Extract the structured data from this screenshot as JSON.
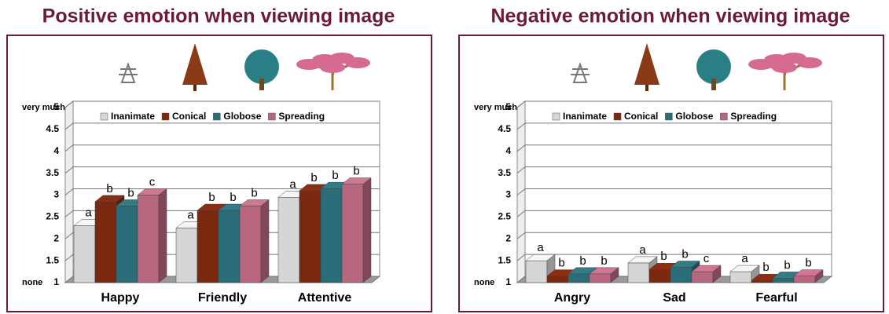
{
  "chart_data": [
    {
      "type": "bar3d",
      "title": "Positive emotion when viewing image",
      "categories": [
        "Happy",
        "Friendly",
        "Attentive"
      ],
      "series": [
        {
          "name": "Inanimate",
          "color": "#d6d6d6",
          "values": [
            2.3,
            2.25,
            2.95
          ],
          "significance_labels": [
            "a",
            "a",
            "a"
          ]
        },
        {
          "name": "Conical",
          "color": "#7a2810",
          "values": [
            2.85,
            2.65,
            3.1
          ],
          "significance_labels": [
            "b",
            "b",
            "b"
          ]
        },
        {
          "name": "Globose",
          "color": "#2a6d78",
          "values": [
            2.75,
            2.65,
            3.15
          ],
          "significance_labels": [
            "b",
            "b",
            "b"
          ]
        },
        {
          "name": "Spreading",
          "color": "#b8677f",
          "values": [
            3.0,
            2.75,
            3.25
          ],
          "significance_labels": [
            "c",
            "b",
            "b"
          ]
        }
      ],
      "ylim": [
        1,
        5
      ],
      "yticks": [
        1,
        1.5,
        2,
        2.5,
        3,
        3.5,
        4,
        4.5,
        5
      ],
      "ylabel_top": "very much",
      "ylabel_bottom": "none",
      "grid": true
    },
    {
      "type": "bar3d",
      "title": "Negative emotion when viewing image",
      "categories": [
        "Angry",
        "Sad",
        "Fearful"
      ],
      "series": [
        {
          "name": "Inanimate",
          "color": "#d6d6d6",
          "values": [
            1.5,
            1.45,
            1.25
          ],
          "significance_labels": [
            "a",
            "a",
            "a"
          ]
        },
        {
          "name": "Conical",
          "color": "#7a2810",
          "values": [
            1.15,
            1.3,
            1.05
          ],
          "significance_labels": [
            "b",
            "b",
            "b"
          ]
        },
        {
          "name": "Globose",
          "color": "#2a6d78",
          "values": [
            1.2,
            1.35,
            1.1
          ],
          "significance_labels": [
            "b",
            "b",
            "b"
          ]
        },
        {
          "name": "Spreading",
          "color": "#b8677f",
          "values": [
            1.2,
            1.25,
            1.15
          ],
          "significance_labels": [
            "b",
            "c",
            "b"
          ]
        }
      ],
      "ylim": [
        1,
        5
      ],
      "yticks": [
        1,
        1.5,
        2,
        2.5,
        3,
        3.5,
        4,
        4.5,
        5
      ],
      "ylabel_top": "very much",
      "ylabel_bottom": "none",
      "grid": true
    }
  ]
}
